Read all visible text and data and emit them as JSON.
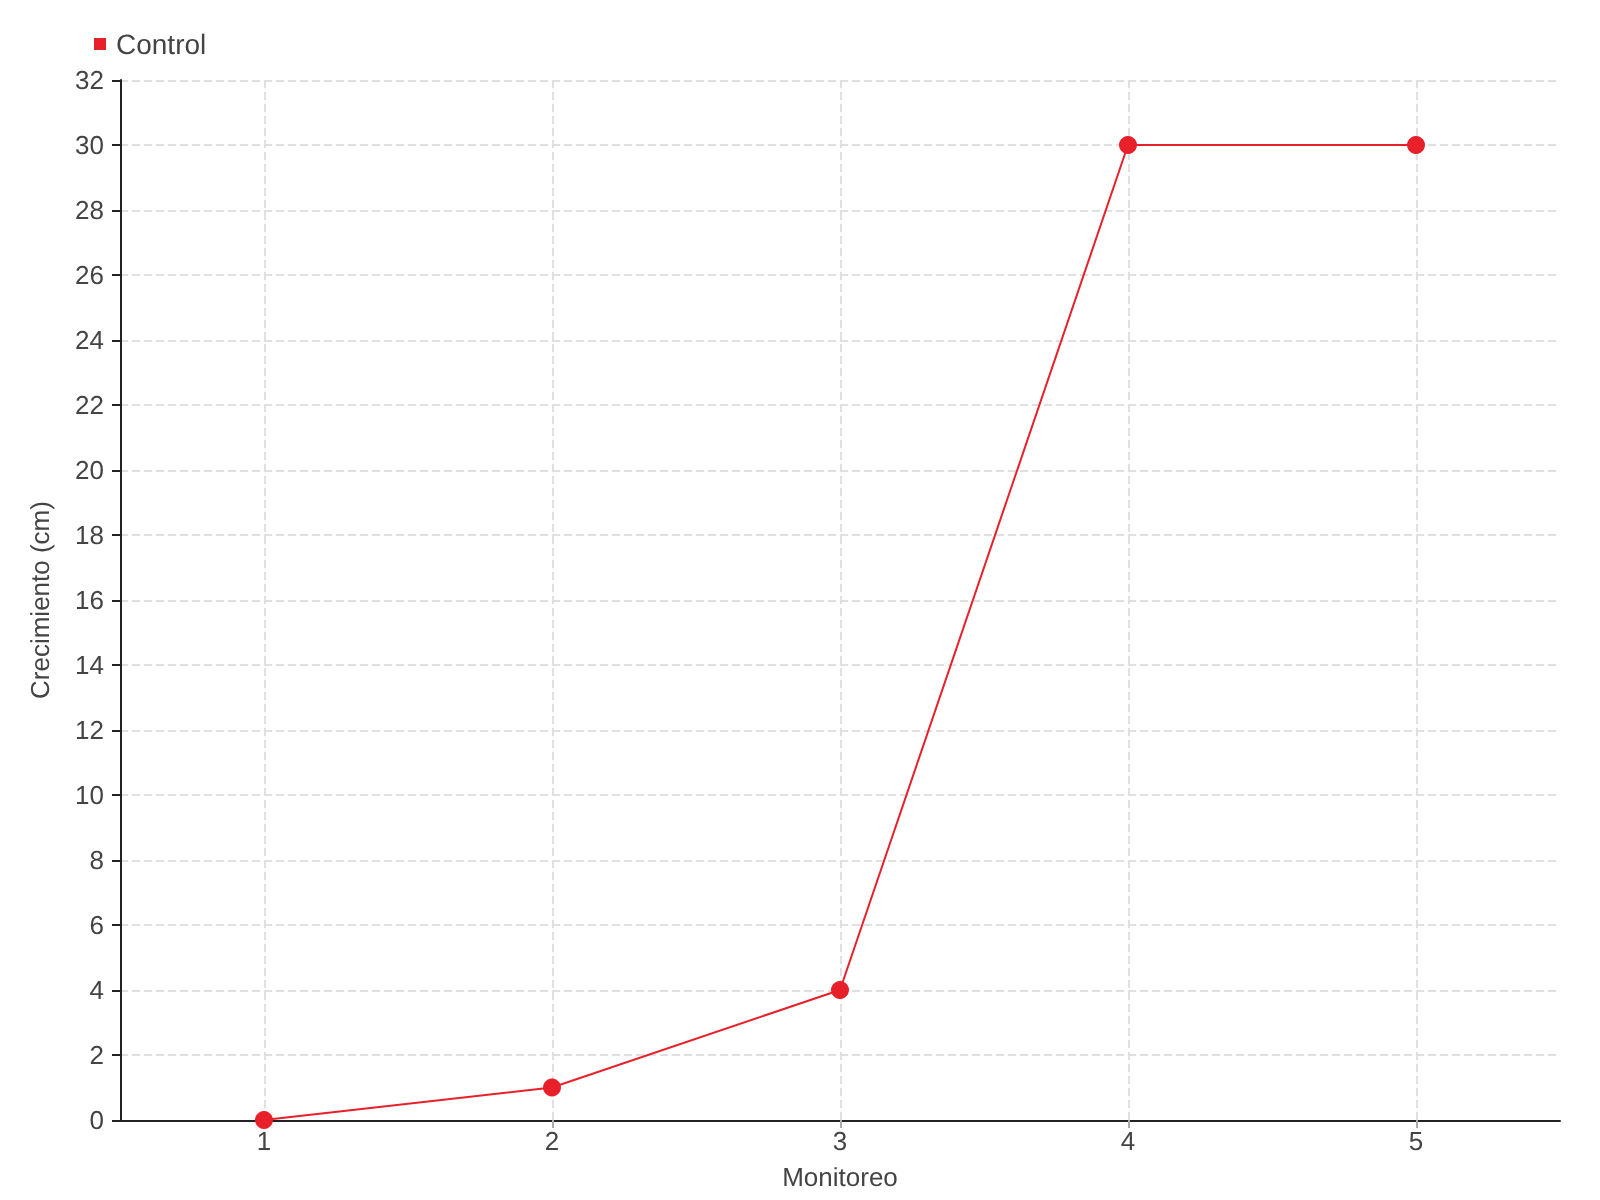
{
  "chart_data": {
    "type": "line",
    "xlabel": "Monitoreo",
    "ylabel": "Crecimiento (cm)",
    "x": [
      1,
      2,
      3,
      4,
      5
    ],
    "xlim": [
      0.5,
      5.5
    ],
    "xticks": [
      1,
      2,
      3,
      4,
      5
    ],
    "series": [
      {
        "name": "Control",
        "color": "#e8202a",
        "values": [
          0,
          1,
          4,
          30,
          30
        ]
      }
    ],
    "ylim": [
      0,
      32
    ],
    "yticks": [
      0,
      2,
      4,
      6,
      8,
      10,
      12,
      14,
      16,
      18,
      20,
      22,
      24,
      26,
      28,
      30,
      32
    ],
    "grid": true,
    "legend": "top left",
    "marker": "circle",
    "line_style": "solid"
  }
}
